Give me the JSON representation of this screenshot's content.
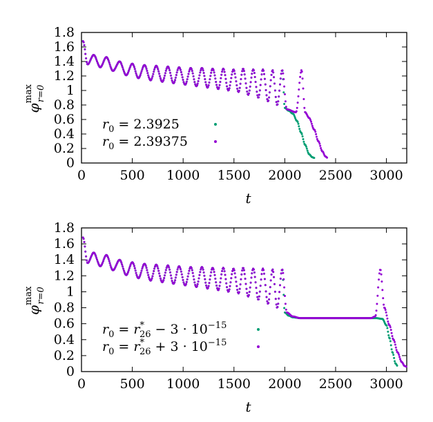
{
  "colors": {
    "series_1": "#009e73",
    "series_2": "#9400d3",
    "axis": "#000000"
  },
  "chart_data": [
    {
      "type": "scatter",
      "xlabel": "t",
      "ylabel": "φ_{r=0}^{max}",
      "ylabel_parts": {
        "base": "φ",
        "sup": "max",
        "sub": "r=0"
      },
      "xlim": [
        0,
        3200
      ],
      "ylim": [
        0,
        1.8
      ],
      "x_ticks": [
        "0",
        "500",
        "1000",
        "1500",
        "2000",
        "2500",
        "3000"
      ],
      "y_ticks": [
        "0",
        "0.2",
        "0.4",
        "0.6",
        "0.8",
        "1",
        "1.2",
        "1.4",
        "1.6",
        "1.8"
      ],
      "grid": false,
      "legend_position": "bottom-left",
      "series": [
        {
          "name": "r0 = 2.3925",
          "label_parts": {
            "sym": "r",
            "sub": "0",
            "rest": " = 2.3925"
          },
          "color": "#009e73",
          "peaks": [
            [
              15,
              1.68
            ],
            [
              120,
              1.49
            ],
            [
              245,
              1.46
            ],
            [
              375,
              1.4
            ],
            [
              500,
              1.37
            ],
            [
              620,
              1.35
            ],
            [
              735,
              1.34
            ],
            [
              850,
              1.33
            ],
            [
              960,
              1.32
            ],
            [
              1075,
              1.31
            ],
            [
              1185,
              1.31
            ],
            [
              1290,
              1.3
            ],
            [
              1395,
              1.3
            ],
            [
              1495,
              1.29
            ],
            [
              1590,
              1.3
            ],
            [
              1690,
              1.29
            ],
            [
              1785,
              1.29
            ],
            [
              1880,
              1.28
            ],
            [
              1975,
              1.28
            ]
          ],
          "troughs": [
            [
              60,
              1.36
            ],
            [
              185,
              1.32
            ],
            [
              310,
              1.27
            ],
            [
              440,
              1.21
            ],
            [
              560,
              1.17
            ],
            [
              680,
              1.14
            ],
            [
              795,
              1.12
            ],
            [
              905,
              1.1
            ],
            [
              1020,
              1.08
            ],
            [
              1130,
              1.06
            ],
            [
              1240,
              1.04
            ],
            [
              1345,
              1.02
            ],
            [
              1445,
              1.0
            ],
            [
              1545,
              0.98
            ],
            [
              1640,
              0.94
            ],
            [
              1740,
              0.9
            ],
            [
              1835,
              0.85
            ],
            [
              1925,
              0.8
            ]
          ],
          "tail": [
            [
              2000,
              0.76
            ],
            [
              2040,
              0.72
            ],
            [
              2080,
              0.68
            ],
            [
              2120,
              0.58
            ],
            [
              2160,
              0.42
            ],
            [
              2200,
              0.25
            ],
            [
              2240,
              0.12
            ],
            [
              2270,
              0.08
            ],
            [
              2290,
              0.07
            ]
          ]
        },
        {
          "name": "r0 = 2.39375",
          "label_parts": {
            "sym": "r",
            "sub": "0",
            "rest": " = 2.39375"
          },
          "color": "#9400d3",
          "peaks": [
            [
              15,
              1.68
            ],
            [
              120,
              1.49
            ],
            [
              245,
              1.46
            ],
            [
              375,
              1.4
            ],
            [
              500,
              1.37
            ],
            [
              620,
              1.35
            ],
            [
              735,
              1.34
            ],
            [
              850,
              1.33
            ],
            [
              960,
              1.32
            ],
            [
              1075,
              1.31
            ],
            [
              1185,
              1.31
            ],
            [
              1290,
              1.3
            ],
            [
              1395,
              1.3
            ],
            [
              1495,
              1.29
            ],
            [
              1590,
              1.3
            ],
            [
              1690,
              1.29
            ],
            [
              1785,
              1.29
            ],
            [
              1880,
              1.28
            ],
            [
              1975,
              1.28
            ],
            [
              2165,
              1.28
            ]
          ],
          "troughs": [
            [
              60,
              1.36
            ],
            [
              185,
              1.32
            ],
            [
              310,
              1.27
            ],
            [
              440,
              1.21
            ],
            [
              560,
              1.17
            ],
            [
              680,
              1.14
            ],
            [
              795,
              1.12
            ],
            [
              905,
              1.1
            ],
            [
              1020,
              1.08
            ],
            [
              1130,
              1.06
            ],
            [
              1240,
              1.04
            ],
            [
              1345,
              1.02
            ],
            [
              1445,
              1.0
            ],
            [
              1545,
              0.98
            ],
            [
              1640,
              0.94
            ],
            [
              1740,
              0.9
            ],
            [
              1835,
              0.85
            ],
            [
              1925,
              0.8
            ],
            [
              2020,
              0.74
            ],
            [
              2110,
              0.7
            ]
          ],
          "tail": [
            [
              2200,
              0.7
            ],
            [
              2240,
              0.62
            ],
            [
              2290,
              0.46
            ],
            [
              2330,
              0.3
            ],
            [
              2370,
              0.16
            ],
            [
              2400,
              0.09
            ],
            [
              2420,
              0.07
            ]
          ]
        }
      ]
    },
    {
      "type": "scatter",
      "xlabel": "t",
      "ylabel": "φ_{r=0}^{max}",
      "ylabel_parts": {
        "base": "φ",
        "sup": "max",
        "sub": "r=0"
      },
      "xlim": [
        0,
        3200
      ],
      "ylim": [
        0,
        1.8
      ],
      "x_ticks": [
        "0",
        "500",
        "1000",
        "1500",
        "2000",
        "2500",
        "3000"
      ],
      "y_ticks": [
        "0",
        "0.2",
        "0.4",
        "0.6",
        "0.8",
        "1",
        "1.2",
        "1.4",
        "1.6",
        "1.8"
      ],
      "grid": false,
      "legend_position": "bottom-left",
      "series": [
        {
          "name": "r0 = r*26 − 3·10^-15",
          "label_parts": {
            "sym": "r",
            "sub": "0",
            "mid": " = ",
            "sym2": "r",
            "sup2": "*",
            "sub2": "26",
            "op": " − 3 · 10",
            "exp": "−15"
          },
          "color": "#009e73",
          "peaks": [
            [
              15,
              1.68
            ],
            [
              120,
              1.49
            ],
            [
              245,
              1.46
            ],
            [
              375,
              1.4
            ],
            [
              500,
              1.37
            ],
            [
              620,
              1.35
            ],
            [
              735,
              1.34
            ],
            [
              850,
              1.33
            ],
            [
              960,
              1.32
            ],
            [
              1075,
              1.31
            ],
            [
              1185,
              1.31
            ],
            [
              1290,
              1.3
            ],
            [
              1395,
              1.3
            ],
            [
              1495,
              1.29
            ],
            [
              1590,
              1.3
            ],
            [
              1690,
              1.29
            ],
            [
              1785,
              1.29
            ],
            [
              1880,
              1.28
            ],
            [
              1975,
              1.28
            ]
          ],
          "troughs": [
            [
              60,
              1.36
            ],
            [
              185,
              1.32
            ],
            [
              310,
              1.27
            ],
            [
              440,
              1.21
            ],
            [
              560,
              1.17
            ],
            [
              680,
              1.14
            ],
            [
              795,
              1.12
            ],
            [
              905,
              1.1
            ],
            [
              1020,
              1.08
            ],
            [
              1130,
              1.06
            ],
            [
              1240,
              1.04
            ],
            [
              1345,
              1.02
            ],
            [
              1445,
              1.0
            ],
            [
              1545,
              0.98
            ],
            [
              1640,
              0.94
            ],
            [
              1740,
              0.9
            ],
            [
              1835,
              0.85
            ],
            [
              1925,
              0.8
            ]
          ],
          "tail": [
            [
              2000,
              0.74
            ],
            [
              2040,
              0.7
            ],
            [
              2080,
              0.68
            ],
            [
              2150,
              0.67
            ],
            [
              2500,
              0.67
            ],
            [
              2900,
              0.67
            ],
            [
              2960,
              0.66
            ],
            [
              3000,
              0.58
            ],
            [
              3030,
              0.42
            ],
            [
              3060,
              0.24
            ],
            [
              3090,
              0.1
            ],
            [
              3110,
              0.07
            ]
          ]
        },
        {
          "name": "r0 = r*26 + 3·10^-15",
          "label_parts": {
            "sym": "r",
            "sub": "0",
            "mid": " = ",
            "sym2": "r",
            "sup2": "*",
            "sub2": "26",
            "op": " + 3 · 10",
            "exp": "−15"
          },
          "color": "#9400d3",
          "peaks": [
            [
              15,
              1.68
            ],
            [
              120,
              1.49
            ],
            [
              245,
              1.46
            ],
            [
              375,
              1.4
            ],
            [
              500,
              1.37
            ],
            [
              620,
              1.35
            ],
            [
              735,
              1.34
            ],
            [
              850,
              1.33
            ],
            [
              960,
              1.32
            ],
            [
              1075,
              1.31
            ],
            [
              1185,
              1.31
            ],
            [
              1290,
              1.3
            ],
            [
              1395,
              1.3
            ],
            [
              1495,
              1.29
            ],
            [
              1590,
              1.3
            ],
            [
              1690,
              1.29
            ],
            [
              1785,
              1.29
            ],
            [
              1880,
              1.28
            ],
            [
              1975,
              1.28
            ],
            [
              2940,
              1.28
            ]
          ],
          "troughs": [
            [
              60,
              1.36
            ],
            [
              185,
              1.32
            ],
            [
              310,
              1.27
            ],
            [
              440,
              1.21
            ],
            [
              560,
              1.17
            ],
            [
              680,
              1.14
            ],
            [
              795,
              1.12
            ],
            [
              905,
              1.1
            ],
            [
              1020,
              1.08
            ],
            [
              1130,
              1.06
            ],
            [
              1240,
              1.04
            ],
            [
              1345,
              1.02
            ],
            [
              1445,
              1.0
            ],
            [
              1545,
              0.98
            ],
            [
              1640,
              0.94
            ],
            [
              1740,
              0.9
            ],
            [
              1835,
              0.85
            ],
            [
              1925,
              0.8
            ],
            [
              2020,
              0.74
            ],
            [
              2080,
              0.69
            ],
            [
              2150,
              0.67
            ],
            [
              2500,
              0.67
            ],
            [
              2850,
              0.67
            ],
            [
              2890,
              0.69
            ]
          ],
          "tail": [
            [
              2980,
              0.8
            ],
            [
              3030,
              0.58
            ],
            [
              3070,
              0.4
            ],
            [
              3110,
              0.24
            ],
            [
              3150,
              0.12
            ],
            [
              3180,
              0.07
            ],
            [
              3200,
              0.06
            ]
          ]
        }
      ]
    }
  ]
}
